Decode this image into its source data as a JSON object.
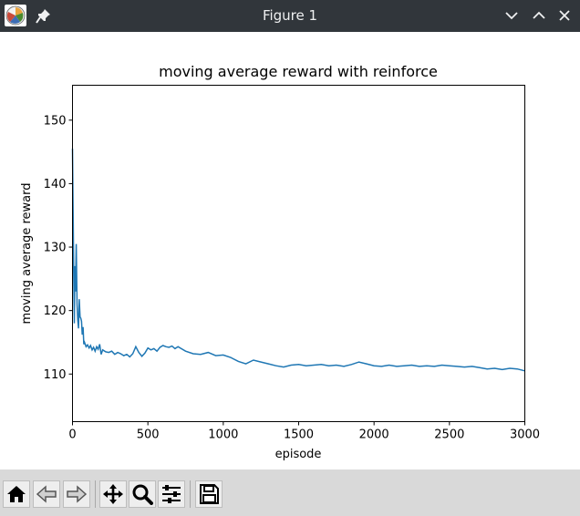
{
  "window": {
    "title": "Figure 1"
  },
  "icons": {
    "app": "matplotlib-app-icon",
    "pin": "pin-icon",
    "minimize": "chevron-down-icon",
    "maximize": "chevron-up-icon",
    "close": "close-icon"
  },
  "toolbar": {
    "buttons": [
      "home-icon",
      "back-arrow-icon",
      "forward-arrow-icon",
      "pan-icon",
      "zoom-icon",
      "configure-subplots-icon",
      "save-icon"
    ]
  },
  "chart_data": {
    "type": "line",
    "title": "moving average reward with reinforce",
    "xlabel": "episode",
    "ylabel": "moving average reward",
    "xlim": [
      0,
      3000
    ],
    "ylim": [
      102.5,
      155.5
    ],
    "xticks": [
      "0",
      "500",
      "1000",
      "1500",
      "2000",
      "2500",
      "3000"
    ],
    "yticks": [
      "110",
      "120",
      "130",
      "140",
      "150"
    ],
    "grid": false,
    "color": "#1f77b4",
    "series": [
      {
        "x": [
          0,
          5,
          8,
          12,
          16,
          20,
          25,
          30,
          35,
          40,
          45,
          50,
          55,
          60,
          65,
          70,
          75,
          80,
          90,
          100,
          110,
          120,
          130,
          140,
          150,
          160,
          170,
          180,
          190,
          200,
          220,
          240,
          260,
          280,
          300,
          320,
          340,
          360,
          380,
          400,
          420,
          440,
          460,
          480,
          500,
          520,
          540,
          560,
          580,
          600,
          620,
          640,
          660,
          680,
          700,
          750,
          800,
          850,
          900,
          950,
          1000,
          1050,
          1100,
          1150,
          1200,
          1250,
          1300,
          1350,
          1400,
          1450,
          1500,
          1550,
          1600,
          1650,
          1700,
          1750,
          1800,
          1850,
          1900,
          1950,
          2000,
          2050,
          2100,
          2150,
          2200,
          2250,
          2300,
          2350,
          2400,
          2450,
          2500,
          2550,
          2600,
          2650,
          2700,
          2750,
          2800,
          2850,
          2900,
          2950,
          3000
        ],
        "y": [
          145.5,
          134,
          126,
          118,
          127,
          123,
          130.5,
          121,
          118.5,
          117.2,
          121.8,
          119,
          118.8,
          118.3,
          116.2,
          117.4,
          114.7,
          115,
          114.3,
          114.6,
          114.1,
          114.5,
          113.8,
          114.2,
          113.6,
          114.3,
          113.9,
          114.7,
          113.1,
          113.8,
          113.5,
          113.4,
          113.6,
          113.1,
          113.4,
          113.2,
          112.9,
          113.1,
          112.7,
          113.2,
          114.3,
          113.4,
          112.8,
          113.3,
          114.1,
          113.8,
          114.0,
          113.6,
          114.2,
          114.5,
          114.3,
          114.2,
          114.4,
          114.0,
          114.3,
          113.6,
          113.2,
          113.1,
          113.4,
          112.9,
          113.0,
          112.6,
          112.0,
          111.6,
          112.2,
          111.9,
          111.6,
          111.3,
          111.1,
          111.4,
          111.5,
          111.3,
          111.4,
          111.5,
          111.3,
          111.4,
          111.2,
          111.5,
          111.9,
          111.6,
          111.3,
          111.2,
          111.4,
          111.2,
          111.3,
          111.4,
          111.2,
          111.3,
          111.2,
          111.4,
          111.3,
          111.2,
          111.1,
          111.2,
          111.0,
          110.8,
          110.9,
          110.7,
          110.9,
          110.8,
          110.5
        ]
      }
    ]
  }
}
